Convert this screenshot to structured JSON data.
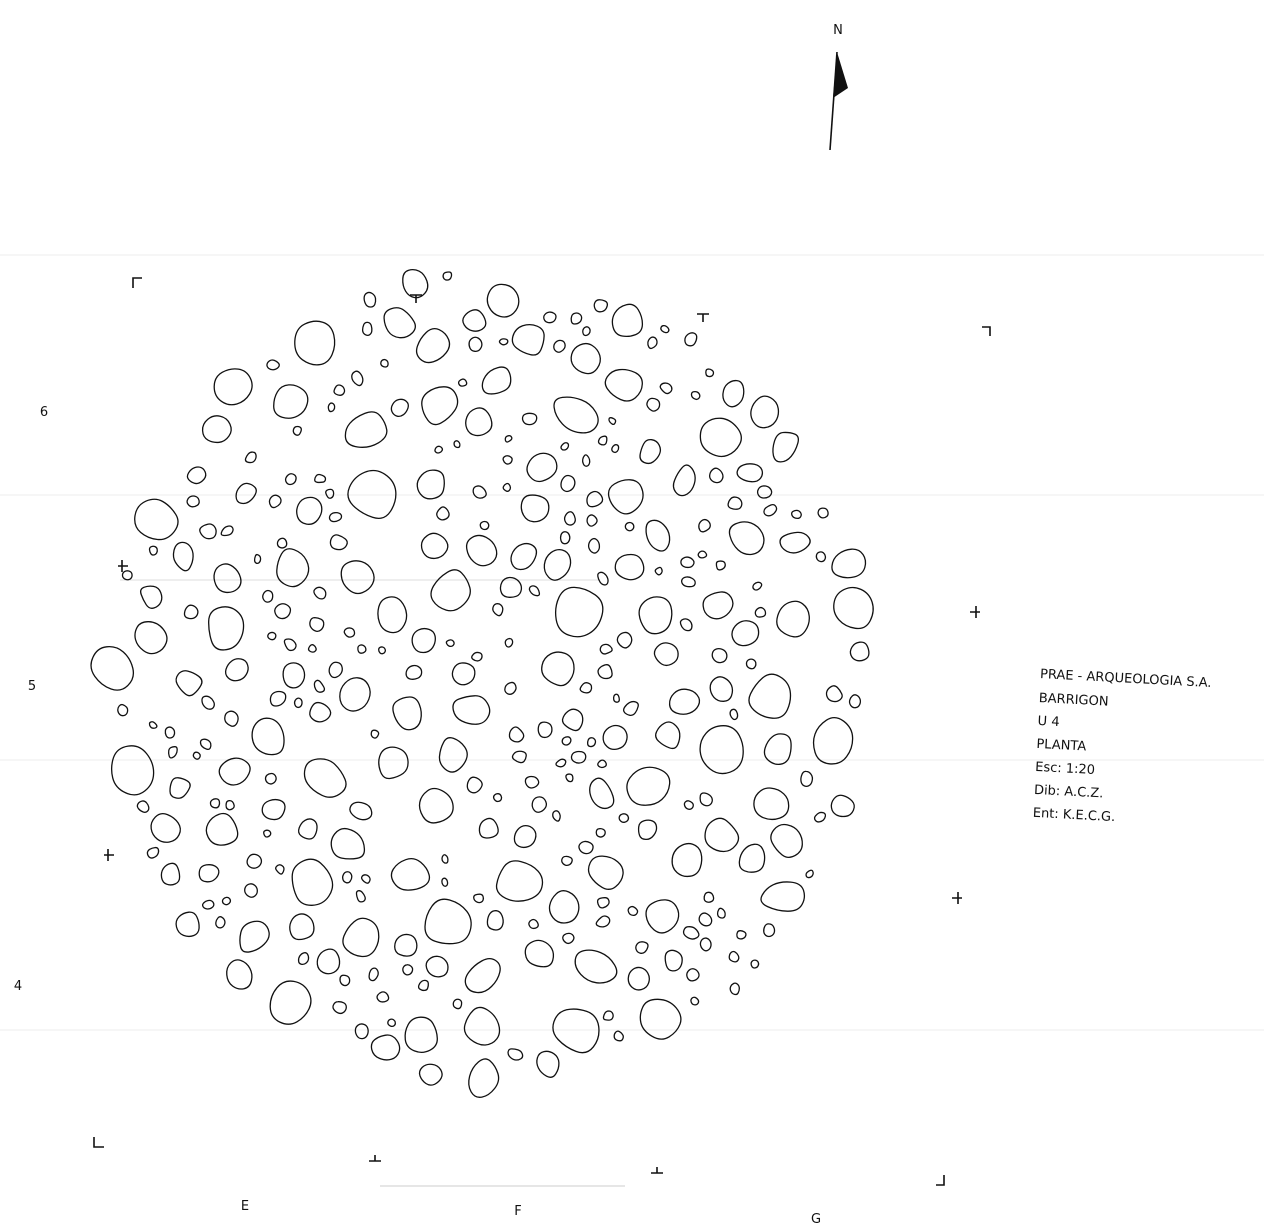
{
  "north": "N",
  "grid_rows": [
    "6",
    "5",
    "4"
  ],
  "grid_columns": [
    "E",
    "F",
    "G"
  ],
  "legend": {
    "lines": [
      "PRAE - ARQUEOLOGIA S.A.",
      "BARRIGON",
      "U 4",
      "PLANTA",
      "Esc: 1:20",
      "Dib: A.C.Z.",
      "Ent: K.E.C.G."
    ]
  }
}
